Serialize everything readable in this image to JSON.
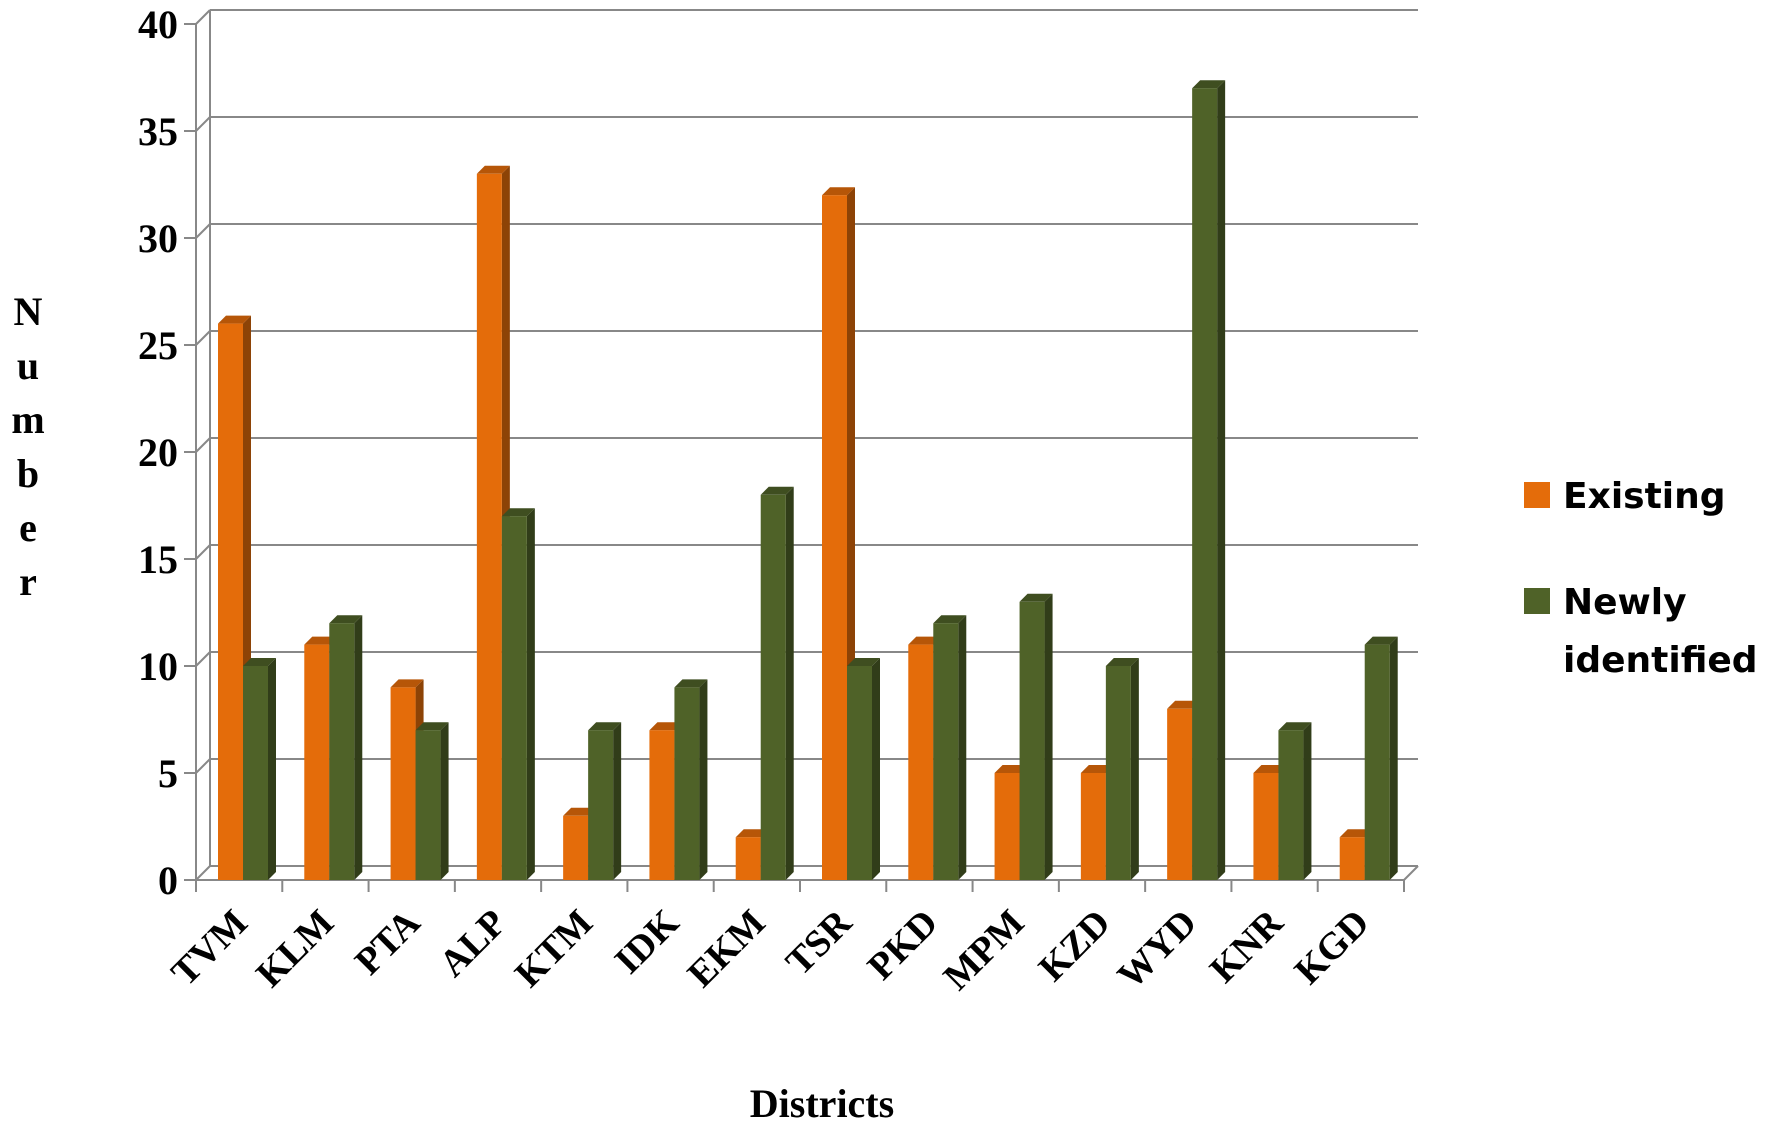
{
  "chart_data": {
    "type": "bar",
    "categories": [
      "TVM",
      "KLM",
      "PTA",
      "ALP",
      "KTM",
      "IDK",
      "EKM",
      "TSR",
      "PKD",
      "MPM",
      "KZD",
      "WYD",
      "KNR",
      "KGD"
    ],
    "series": [
      {
        "name": "Existing",
        "values": [
          26,
          11,
          9,
          33,
          3,
          7,
          2,
          32,
          11,
          5,
          5,
          8,
          5,
          2
        ],
        "color": "#E46C0A"
      },
      {
        "name": "Newly identified",
        "values": [
          10,
          12,
          7,
          17,
          7,
          9,
          18,
          10,
          12,
          13,
          10,
          37,
          7,
          11
        ],
        "color": "#4F6228"
      }
    ],
    "xlabel": "Districts",
    "ylabel": "Number",
    "ylim": [
      0,
      40
    ],
    "yticks": [
      0,
      5,
      10,
      15,
      20,
      25,
      30,
      35,
      40
    ],
    "grid": true,
    "legend": "right",
    "style": "3d-clustered-column"
  }
}
